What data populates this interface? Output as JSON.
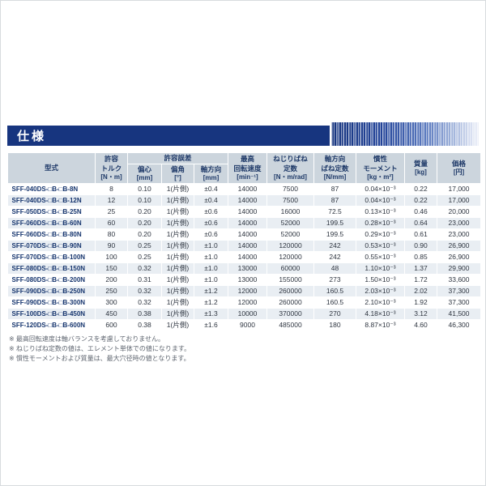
{
  "page": {
    "title": "仕様"
  },
  "colors": {
    "title_bar": "#17357f",
    "header_bg": "#ccd5dd",
    "row_alt_bg": "#e9eef3",
    "header_text": "#1d3867",
    "model_text": "#16356e"
  },
  "table": {
    "header": {
      "model": {
        "label": "型式"
      },
      "torque": {
        "label": "許容\nトルク",
        "unit": "[N・m]"
      },
      "tolerance_group": {
        "label": "許容誤差"
      },
      "eccentricity": {
        "label": "偏心",
        "unit": "[mm]"
      },
      "angle": {
        "label": "偏角",
        "unit": "[°]"
      },
      "axial": {
        "label": "軸方向",
        "unit": "[mm]"
      },
      "max_speed": {
        "label": "最高\n回転速度",
        "unit": "[min⁻¹]"
      },
      "torsional_spring": {
        "label": "ねじりばね\n定数",
        "unit": "[N・m/rad]"
      },
      "axial_spring": {
        "label": "軸方向\nばね定数",
        "unit": "[N/mm]"
      },
      "inertia": {
        "label": "慣性\nモーメント",
        "unit": "[kg・m²]"
      },
      "mass": {
        "label": "質量",
        "unit": "[kg]"
      },
      "price": {
        "label": "価格",
        "unit": "[円]"
      }
    },
    "cell_names": [
      "model",
      "allowable-torque",
      "eccentricity",
      "angular-misalignment",
      "axial-misalignment",
      "max-rotation-speed",
      "torsional-spring-constant",
      "axial-spring-constant",
      "moment-of-inertia",
      "mass",
      "price"
    ],
    "rows": [
      {
        "cells": [
          "SFF-040DS-□B-□B-8N",
          "8",
          "0.10",
          "1(片側)",
          "±0.4",
          "14000",
          "7500",
          "87",
          "0.04×10⁻³",
          "0.22",
          "17,000"
        ]
      },
      {
        "cells": [
          "SFF-040DS-□B-□B-12N",
          "12",
          "0.10",
          "1(片側)",
          "±0.4",
          "14000",
          "7500",
          "87",
          "0.04×10⁻³",
          "0.22",
          "17,000"
        ]
      },
      {
        "cells": [
          "SFF-050DS-□B-□B-25N",
          "25",
          "0.20",
          "1(片側)",
          "±0.6",
          "14000",
          "16000",
          "72.5",
          "0.13×10⁻³",
          "0.46",
          "20,000"
        ]
      },
      {
        "cells": [
          "SFF-060DS-□B-□B-60N",
          "60",
          "0.20",
          "1(片側)",
          "±0.6",
          "14000",
          "52000",
          "199.5",
          "0.28×10⁻³",
          "0.64",
          "23,000"
        ]
      },
      {
        "cells": [
          "SFF-060DS-□B-□B-80N",
          "80",
          "0.20",
          "1(片側)",
          "±0.6",
          "14000",
          "52000",
          "199.5",
          "0.29×10⁻³",
          "0.61",
          "23,000"
        ]
      },
      {
        "cells": [
          "SFF-070DS-□B-□B-90N",
          "90",
          "0.25",
          "1(片側)",
          "±1.0",
          "14000",
          "120000",
          "242",
          "0.53×10⁻³",
          "0.90",
          "26,900"
        ]
      },
      {
        "cells": [
          "SFF-070DS-□B-□B-100N",
          "100",
          "0.25",
          "1(片側)",
          "±1.0",
          "14000",
          "120000",
          "242",
          "0.55×10⁻³",
          "0.85",
          "26,900"
        ]
      },
      {
        "cells": [
          "SFF-080DS-□B-□B-150N",
          "150",
          "0.32",
          "1(片側)",
          "±1.0",
          "13000",
          "60000",
          "48",
          "1.10×10⁻³",
          "1.37",
          "29,900"
        ]
      },
      {
        "cells": [
          "SFF-080DS-□B-□B-200N",
          "200",
          "0.31",
          "1(片側)",
          "±1.0",
          "13000",
          "155000",
          "273",
          "1.50×10⁻³",
          "1.72",
          "33,600"
        ]
      },
      {
        "cells": [
          "SFF-090DS-□B-□B-250N",
          "250",
          "0.32",
          "1(片側)",
          "±1.2",
          "12000",
          "260000",
          "160.5",
          "2.03×10⁻³",
          "2.02",
          "37,300"
        ]
      },
      {
        "cells": [
          "SFF-090DS-□B-□B-300N",
          "300",
          "0.32",
          "1(片側)",
          "±1.2",
          "12000",
          "260000",
          "160.5",
          "2.10×10⁻³",
          "1.92",
          "37,300"
        ]
      },
      {
        "cells": [
          "SFF-100DS-□B-□B-450N",
          "450",
          "0.38",
          "1(片側)",
          "±1.3",
          "10000",
          "370000",
          "270",
          "4.18×10⁻³",
          "3.12",
          "41,500"
        ]
      },
      {
        "cells": [
          "SFF-120DS-□B-□B-600N",
          "600",
          "0.38",
          "1(片側)",
          "±1.6",
          "9000",
          "485000",
          "180",
          "8.87×10⁻³",
          "4.60",
          "46,300"
        ]
      }
    ]
  },
  "notes": [
    "※ 最高回転速度は軸バランスを考慮しておりません。",
    "※ ねじりばね定数の値は、エレメント単体での値になります。",
    "※ 慣性モーメントおよび質量は、最大穴径時の値となります。"
  ]
}
